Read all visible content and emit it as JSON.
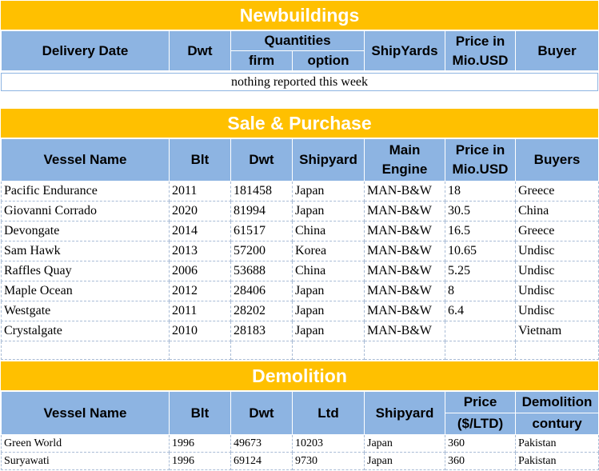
{
  "newbuildings": {
    "title": "Newbuildings",
    "headers": {
      "delivery_date": "Delivery Date",
      "dwt": "Dwt",
      "quantities": "Quantities",
      "firm": "firm",
      "option": "option",
      "shipyards": "ShipYards",
      "price_line1": "Price in",
      "price_line2": "Mio.USD",
      "buyer": "Buyer"
    },
    "note": "nothing reported this week"
  },
  "sale_purchase": {
    "title": "Sale & Purchase",
    "headers": {
      "vessel_name": "Vessel Name",
      "blt": "Blt",
      "dwt": "Dwt",
      "shipyard": "Shipyard",
      "engine_line1": "Main",
      "engine_line2": "Engine",
      "price_line1": "Price in",
      "price_line2": "Mio.USD",
      "buyers": "Buyers"
    },
    "rows": [
      [
        "Pacific Endurance",
        "2011",
        "181458",
        "Japan",
        "MAN-B&W",
        "18",
        "Greece"
      ],
      [
        "Giovanni Corrado",
        "2020",
        "81994",
        "Japan",
        "MAN-B&W",
        "30.5",
        "China"
      ],
      [
        "Devongate",
        "2014",
        "61517",
        "China",
        "MAN-B&W",
        "16.5",
        "Greece"
      ],
      [
        "Sam Hawk",
        "2013",
        "57200",
        "Korea",
        "MAN-B&W",
        "10.65",
        "Undisc"
      ],
      [
        "Raffles Quay",
        "2006",
        "53688",
        "China",
        "MAN-B&W",
        "5.25",
        "Undisc"
      ],
      [
        "Maple Ocean",
        "2012",
        "28406",
        "Japan",
        "MAN-B&W",
        "8",
        "Undisc"
      ],
      [
        "Westgate",
        "2011",
        "28202",
        "Japan",
        "MAN-B&W",
        "6.4",
        "Undisc"
      ],
      [
        "Crystalgate",
        "2010",
        "28183",
        "Japan",
        "MAN-B&W",
        "",
        "Vietnam"
      ]
    ]
  },
  "demolition": {
    "title": "Demolition",
    "headers": {
      "vessel_name": "Vessel Name",
      "blt": "Blt",
      "dwt": "Dwt",
      "ltd": "Ltd",
      "shipyard": "Shipyard",
      "price_line1": "Price",
      "price_line2": "($/LTD)",
      "demo_line1": "Demolition",
      "demo_line2": "contury"
    },
    "rows": [
      [
        "Green World",
        "1996",
        "49673",
        "10203",
        "Japan",
        "360",
        "Pakistan"
      ],
      [
        "Suryawati",
        "1996",
        "69124",
        "9730",
        "Japan",
        "360",
        "Pakistan"
      ]
    ]
  }
}
